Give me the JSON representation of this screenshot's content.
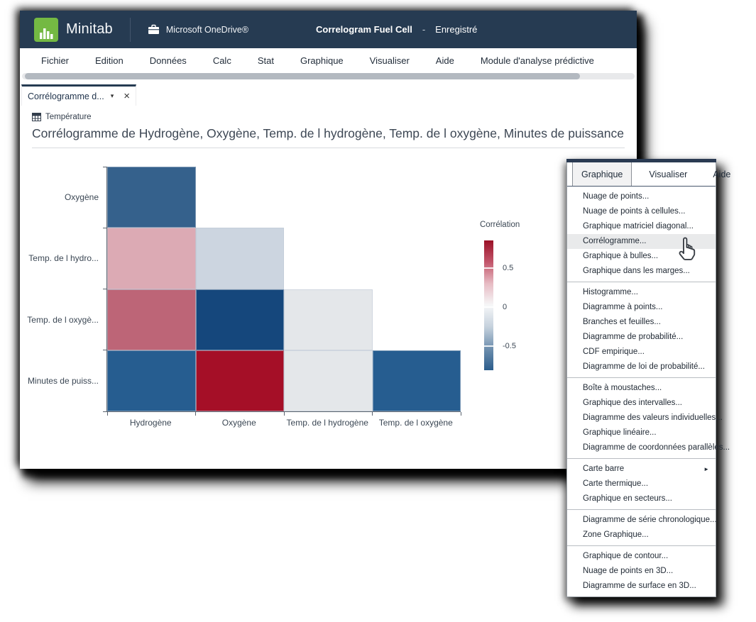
{
  "window": {
    "brand": "Minitab",
    "storage": "Microsoft OneDrive®",
    "doc_title": "Correlogram Fuel Cell",
    "doc_sep": "-",
    "doc_status": "Enregistré",
    "menubar": [
      "Fichier",
      "Edition",
      "Données",
      "Calc",
      "Stat",
      "Graphique",
      "Visualiser",
      "Aide",
      "Module d'analyse prédictive"
    ],
    "tab": {
      "label": "Corrélogramme d...",
      "caret": "▾",
      "close": "×"
    },
    "worksheet": "Température"
  },
  "chart_data": {
    "type": "heatmap",
    "title": "Corrélogramme de Hydrogène, Oxygène, Temp. de l hydrogène, Temp. de l oxygène, Minutes de puissance",
    "x_categories": [
      "Hydrogène",
      "Oxygène",
      "Temp. de l hydrogène",
      "Temp. de l oxygène"
    ],
    "y_categories": [
      "Oxygène",
      "Temp. de l hydro...",
      "Temp. de l oxygè...",
      "Minutes de puiss..."
    ],
    "legend": {
      "title": "Corrélation",
      "tick_labels": [
        "0.5",
        "0",
        "-0.5"
      ],
      "tick_positions_pct": [
        21.3,
        51.4,
        81.4
      ],
      "gradient_stops": [
        "#9b1127",
        "#c2556a",
        "#e7bcc4",
        "#f6f7f8",
        "#c5d1dd",
        "#6e8fae",
        "#2b5d8c"
      ],
      "range": [
        -0.85,
        0.85
      ]
    },
    "cells": [
      [
        {
          "value": -0.62,
          "color": "#35618c"
        },
        null,
        null,
        null
      ],
      [
        {
          "value": 0.28,
          "color": "#dcaab4"
        },
        {
          "value": -0.18,
          "color": "#ccd5e0"
        },
        null,
        null
      ],
      [
        {
          "value": 0.52,
          "color": "#bd6577"
        },
        {
          "value": -0.83,
          "color": "#15477c"
        },
        {
          "value": -0.04,
          "color": "#e4e7ea"
        },
        null
      ],
      [
        {
          "value": -0.68,
          "color": "#265d90"
        },
        {
          "value": 0.92,
          "color": "#a50f27"
        },
        {
          "value": -0.04,
          "color": "#e4e7ea"
        },
        {
          "value": -0.68,
          "color": "#265d90"
        }
      ]
    ]
  },
  "context_menu": {
    "tabs": [
      {
        "label": "Graphique",
        "active": true
      },
      {
        "label": "Visualiser",
        "active": false
      },
      {
        "label": "Aide",
        "active": false
      }
    ],
    "groups": [
      {
        "items": [
          {
            "label": "Nuage de points..."
          },
          {
            "label": "Nuage de points à cellules..."
          },
          {
            "label": "Graphique matriciel diagonal..."
          },
          {
            "label": "Corrélogramme...",
            "hovered": true
          },
          {
            "label": "Graphique à bulles..."
          },
          {
            "label": "Graphique dans les marges..."
          }
        ]
      },
      {
        "items": [
          {
            "label": "Histogramme..."
          },
          {
            "label": "Diagramme à points..."
          },
          {
            "label": "Branches et feuilles..."
          },
          {
            "label": "Diagramme de probabilité..."
          },
          {
            "label": "CDF empirique..."
          },
          {
            "label": "Diagramme de loi de probabilité..."
          }
        ]
      },
      {
        "items": [
          {
            "label": "Boîte à moustaches..."
          },
          {
            "label": "Graphique des intervalles..."
          },
          {
            "label": "Diagramme des valeurs individuelles..."
          },
          {
            "label": "Graphique linéaire..."
          },
          {
            "label": "Diagramme de coordonnées parallèles..."
          }
        ]
      },
      {
        "items": [
          {
            "label": "Carte barre",
            "submenu": true
          },
          {
            "label": "Carte thermique..."
          },
          {
            "label": "Graphique en secteurs..."
          }
        ]
      },
      {
        "items": [
          {
            "label": "Diagramme de série chronologique..."
          },
          {
            "label": "Zone Graphique..."
          }
        ]
      },
      {
        "items": [
          {
            "label": "Graphique de contour..."
          },
          {
            "label": "Nuage de points en 3D..."
          },
          {
            "label": "Diagramme de surface en 3D..."
          }
        ]
      }
    ]
  },
  "colors": {
    "topbar": "#263b52",
    "logo_green": "#74b943",
    "axis": "#5a636e",
    "menu_hover": "#e9eaeb",
    "tab_accent": "#263b52"
  }
}
